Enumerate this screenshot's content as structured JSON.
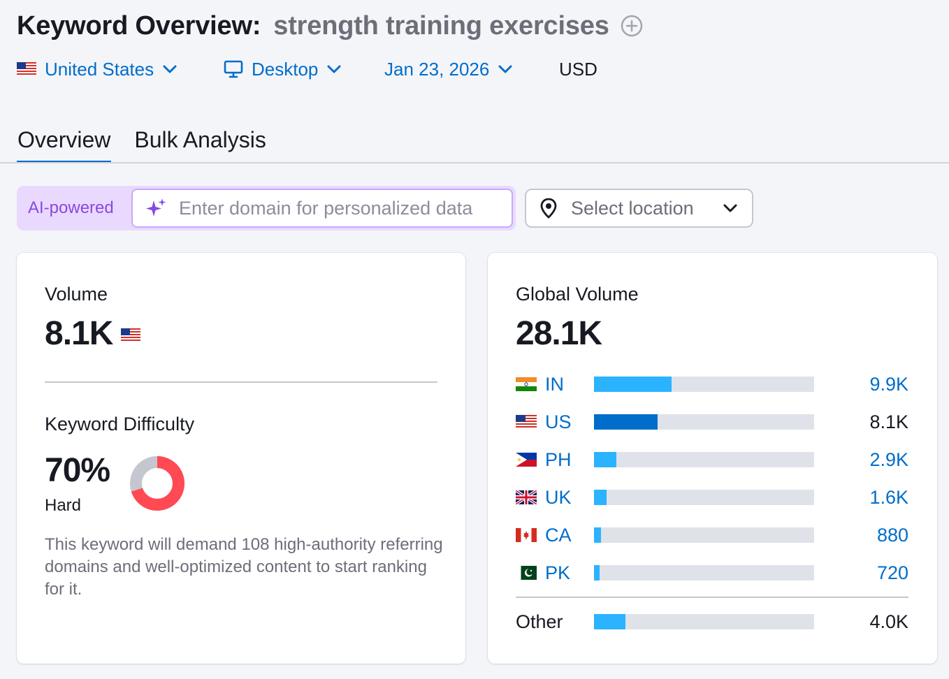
{
  "header": {
    "title": "Keyword Overview:",
    "keyword": "strength training exercises",
    "add_icon": "plus-circle-icon"
  },
  "filters": {
    "country": "United States",
    "device": "Desktop",
    "date": "Jan 23, 2026",
    "currency": "USD"
  },
  "tabs": [
    {
      "label": "Overview",
      "active": true
    },
    {
      "label": "Bulk Analysis",
      "active": false
    }
  ],
  "personalize": {
    "badge": "AI-powered",
    "placeholder": "Enter domain for personalized data",
    "location_placeholder": "Select location"
  },
  "volume": {
    "label": "Volume",
    "value": "8.1K"
  },
  "keyword_difficulty": {
    "label": "Keyword Difficulty",
    "value": "70%",
    "percent": 70,
    "level": "Hard",
    "color": "#ff4953",
    "description": "This keyword will demand 108 high-authority referring domains and well-optimized content to start ranking for it."
  },
  "global_volume": {
    "label": "Global Volume",
    "value": "28.1K",
    "countries": [
      {
        "code": "IN",
        "value": "9.9K",
        "share": 0.352,
        "highlight": false
      },
      {
        "code": "US",
        "value": "8.1K",
        "share": 0.288,
        "highlight": true
      },
      {
        "code": "PH",
        "value": "2.9K",
        "share": 0.103,
        "highlight": false
      },
      {
        "code": "UK",
        "value": "1.6K",
        "share": 0.057,
        "highlight": false
      },
      {
        "code": "CA",
        "value": "880",
        "share": 0.031,
        "highlight": false
      },
      {
        "code": "PK",
        "value": "720",
        "share": 0.026,
        "highlight": false
      }
    ],
    "other": {
      "label": "Other",
      "value": "4.0K",
      "share": 0.142
    }
  }
}
